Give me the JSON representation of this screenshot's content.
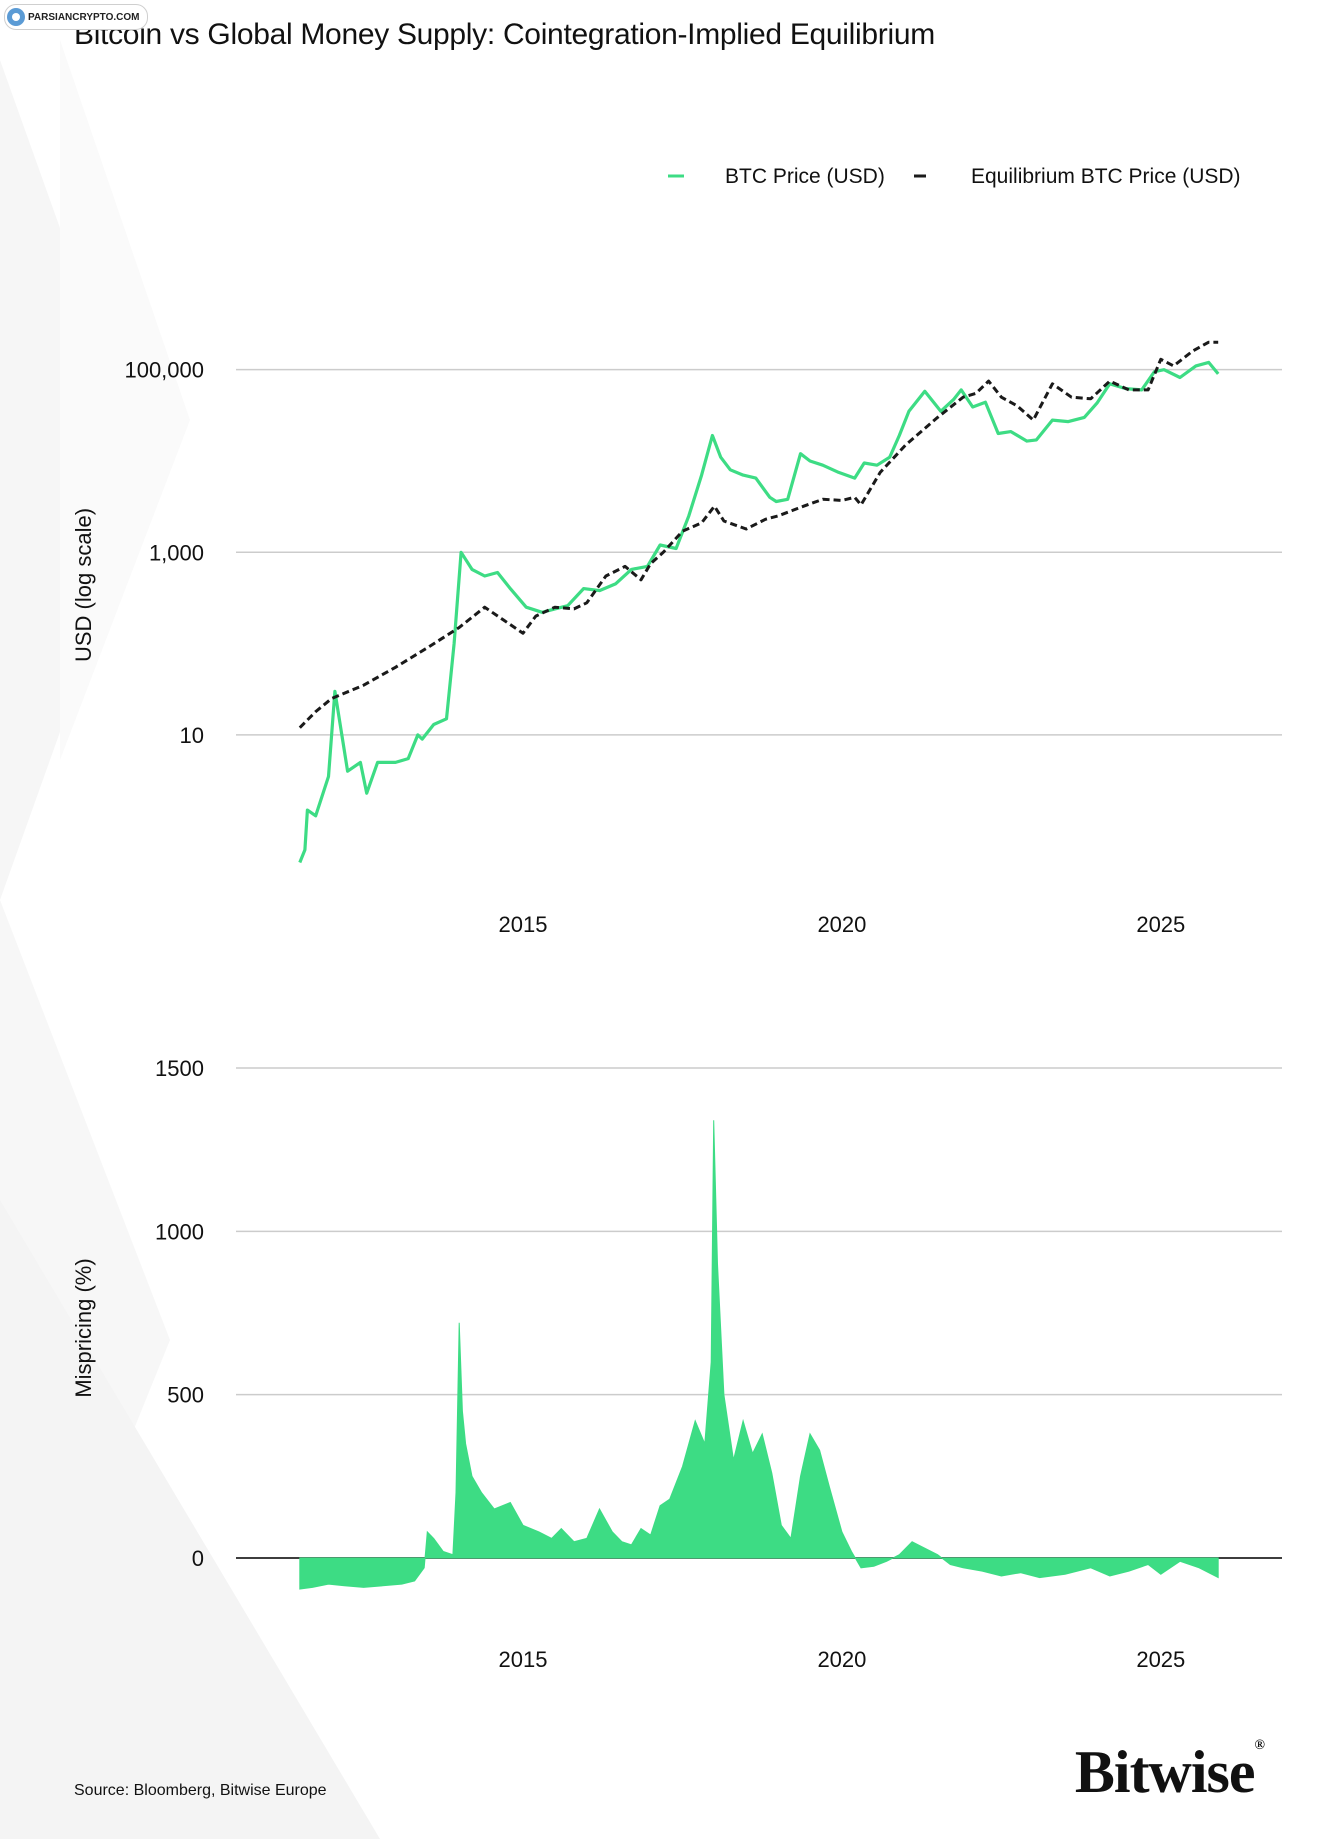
{
  "watermark": {
    "text": "PARSIANCRYPTO.COM",
    "icon": "parsiancrypto-logo"
  },
  "title": "Bitcoin vs Global Money Supply: Cointegration-Implied Equilibrium",
  "brand": {
    "name": "Bitwise",
    "mark": "®"
  },
  "source": "Source: Bloomberg, Bitwise Europe",
  "colors": {
    "btc": "#3ddc84",
    "equilibrium": "#1a1a1a",
    "grid": "#cccccc",
    "text": "#111111"
  },
  "chart_data": [
    {
      "type": "line",
      "title": "",
      "ylabel": "USD (log scale)",
      "xlabel": "",
      "yscale": "log",
      "ylim": [
        0.2,
        350000
      ],
      "xlim": [
        2010.5,
        2026.9
      ],
      "yticks": [
        10,
        1000,
        100000
      ],
      "ytick_labels": [
        "10",
        "1,000",
        "100,000"
      ],
      "xticks": [
        2015,
        2020,
        2025
      ],
      "xtick_labels": [
        "2015",
        "2020",
        "2025"
      ],
      "grid": true,
      "legend": "top-right",
      "series": [
        {
          "name": "BTC Price (USD)",
          "color": "#3ddc84",
          "style": "solid",
          "x": [
            2011.5,
            2011.58,
            2011.62,
            2011.75,
            2011.95,
            2012.05,
            2012.25,
            2012.45,
            2012.55,
            2012.72,
            2013.0,
            2013.2,
            2013.35,
            2013.42,
            2013.6,
            2013.8,
            2013.92,
            2014.03,
            2014.2,
            2014.4,
            2014.6,
            2014.8,
            2015.05,
            2015.3,
            2015.5,
            2015.7,
            2015.95,
            2016.2,
            2016.45,
            2016.7,
            2016.95,
            2017.15,
            2017.4,
            2017.6,
            2017.8,
            2017.97,
            2018.1,
            2018.25,
            2018.45,
            2018.65,
            2018.87,
            2018.97,
            2019.15,
            2019.35,
            2019.5,
            2019.7,
            2019.95,
            2020.2,
            2020.35,
            2020.55,
            2020.75,
            2020.9,
            2021.05,
            2021.3,
            2021.55,
            2021.75,
            2021.87,
            2022.05,
            2022.25,
            2022.45,
            2022.65,
            2022.9,
            2023.05,
            2023.3,
            2023.55,
            2023.8,
            2024.0,
            2024.2,
            2024.45,
            2024.7,
            2024.9,
            2025.05,
            2025.3,
            2025.55,
            2025.75,
            2025.9
          ],
          "y": [
            0.4,
            0.55,
            1.5,
            1.3,
            3.5,
            30,
            4,
            5,
            2.3,
            5,
            5,
            5.5,
            10,
            9,
            13,
            15,
            100,
            1000,
            650,
            550,
            600,
            400,
            250,
            220,
            240,
            260,
            400,
            380,
            450,
            650,
            700,
            1200,
            1100,
            2500,
            7000,
            19000,
            11000,
            8000,
            7000,
            6500,
            4000,
            3600,
            3800,
            12000,
            10000,
            9000,
            7500,
            6500,
            9500,
            9000,
            11000,
            19000,
            35000,
            58000,
            35000,
            47000,
            60000,
            39000,
            44000,
            20000,
            21000,
            16500,
            17000,
            28000,
            27000,
            30000,
            43000,
            70000,
            62000,
            60000,
            95000,
            100000,
            82000,
            110000,
            120000,
            90000
          ]
        },
        {
          "name": "Equilibrium BTC Price (USD)",
          "color": "#1a1a1a",
          "style": "dashed",
          "x": [
            2011.5,
            2011.75,
            2012.0,
            2012.5,
            2013.0,
            2013.5,
            2014.0,
            2014.4,
            2014.7,
            2015.0,
            2015.2,
            2015.5,
            2015.8,
            2016.0,
            2016.3,
            2016.6,
            2016.85,
            2017.0,
            2017.2,
            2017.5,
            2017.8,
            2018.0,
            2018.15,
            2018.5,
            2018.8,
            2019.0,
            2019.4,
            2019.7,
            2020.0,
            2020.2,
            2020.3,
            2020.6,
            2021.0,
            2021.5,
            2021.9,
            2022.1,
            2022.3,
            2022.5,
            2022.75,
            2023.0,
            2023.3,
            2023.6,
            2023.9,
            2024.2,
            2024.5,
            2024.8,
            2025.0,
            2025.2,
            2025.5,
            2025.75,
            2025.9
          ],
          "y": [
            12,
            18,
            25,
            35,
            55,
            90,
            150,
            250,
            180,
            130,
            200,
            250,
            240,
            280,
            550,
            700,
            500,
            750,
            1000,
            1700,
            2100,
            3200,
            2200,
            1800,
            2300,
            2500,
            3200,
            3800,
            3700,
            4000,
            3300,
            7500,
            15000,
            30000,
            50000,
            55000,
            75000,
            50000,
            40000,
            28000,
            70000,
            50000,
            48000,
            75000,
            60000,
            60000,
            130000,
            110000,
            160000,
            200000,
            200000
          ]
        }
      ]
    },
    {
      "type": "area",
      "title": "",
      "ylabel": "Mispricing (%)",
      "xlabel": "",
      "ylim": [
        -150,
        1500
      ],
      "xlim": [
        2010.5,
        2026.9
      ],
      "yticks": [
        0,
        500,
        1000,
        1500
      ],
      "ytick_labels": [
        "0",
        "500",
        "1000",
        "1500"
      ],
      "xticks": [
        2015,
        2020,
        2025
      ],
      "xtick_labels": [
        "2015",
        "2020",
        "2025"
      ],
      "grid": true,
      "series": [
        {
          "name": "Mispricing",
          "color": "#3ddc84",
          "x": [
            2011.5,
            2011.7,
            2011.95,
            2012.2,
            2012.5,
            2012.8,
            2013.1,
            2013.3,
            2013.45,
            2013.5,
            2013.6,
            2013.75,
            2013.9,
            2013.95,
            2014.0,
            2014.05,
            2014.1,
            2014.2,
            2014.35,
            2014.55,
            2014.8,
            2015.0,
            2015.25,
            2015.45,
            2015.6,
            2015.8,
            2016.0,
            2016.2,
            2016.4,
            2016.55,
            2016.7,
            2016.85,
            2017.0,
            2017.15,
            2017.3,
            2017.5,
            2017.7,
            2017.85,
            2017.95,
            2017.99,
            2018.05,
            2018.15,
            2018.3,
            2018.45,
            2018.6,
            2018.75,
            2018.9,
            2019.05,
            2019.2,
            2019.35,
            2019.5,
            2019.65,
            2019.8,
            2020.0,
            2020.15,
            2020.3,
            2020.5,
            2020.7,
            2020.9,
            2021.1,
            2021.3,
            2021.5,
            2021.7,
            2021.9,
            2022.2,
            2022.5,
            2022.8,
            2023.1,
            2023.5,
            2023.9,
            2024.2,
            2024.5,
            2024.8,
            2025.0,
            2025.3,
            2025.6,
            2025.9
          ],
          "y": [
            -95,
            -90,
            -80,
            -85,
            -90,
            -85,
            -80,
            -70,
            -30,
            80,
            60,
            20,
            10,
            200,
            720,
            450,
            350,
            250,
            200,
            150,
            170,
            100,
            80,
            60,
            90,
            50,
            60,
            150,
            80,
            50,
            40,
            90,
            70,
            160,
            180,
            280,
            420,
            350,
            600,
            1340,
            900,
            500,
            300,
            420,
            320,
            380,
            260,
            100,
            60,
            250,
            380,
            330,
            220,
            80,
            20,
            -30,
            -25,
            -10,
            10,
            50,
            30,
            10,
            -20,
            -30,
            -40,
            -55,
            -45,
            -60,
            -50,
            -30,
            -55,
            -40,
            -20,
            -50,
            -10,
            -30,
            -60
          ]
        }
      ]
    }
  ]
}
